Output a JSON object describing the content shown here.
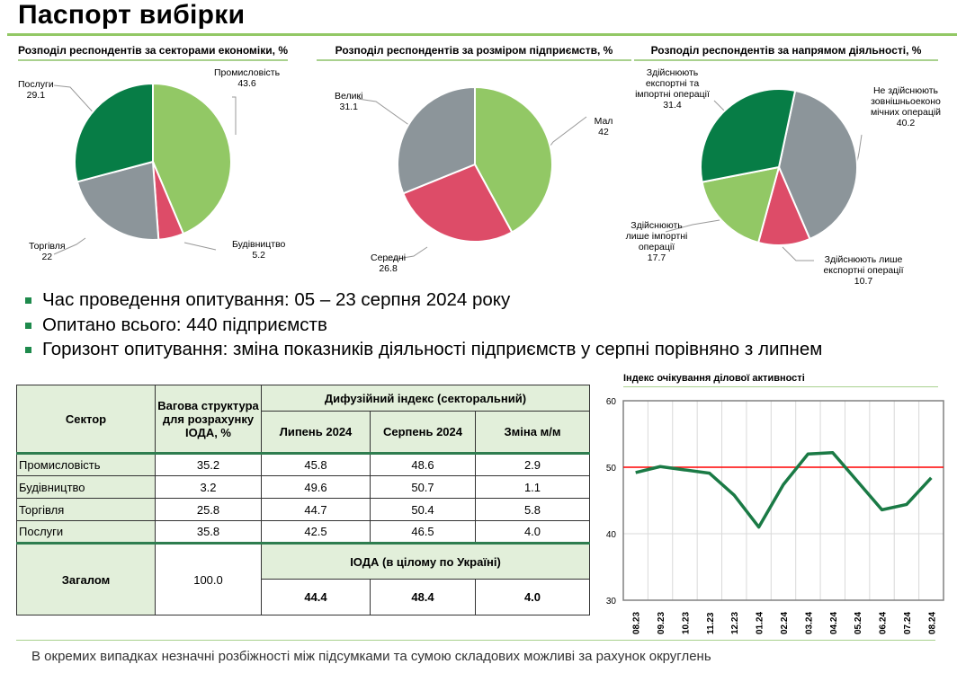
{
  "title": "Паспорт вибірки",
  "colors": {
    "light_green": "#92c865",
    "dark_green": "#077d46",
    "red": "#dd4c68",
    "gray": "#8c959a",
    "accent_line": "#92c865",
    "threshold": "#ff0000",
    "series": "#1a7a45"
  },
  "pies": [
    {
      "title": "Розподіл респондентів за секторами економіки, %",
      "start_deg": 0,
      "slices": [
        {
          "label": "Промисловість",
          "value": 43.6,
          "color": "#92c865"
        },
        {
          "label": "Будівництво",
          "value": 5.2,
          "color": "#dd4c68"
        },
        {
          "label": "Торгівля",
          "value": 22.0,
          "color": "#8c959a"
        },
        {
          "label": "Послуги",
          "value": 29.1,
          "color": "#077d46"
        }
      ]
    },
    {
      "title": "Розподіл респондентів за розміром підприємств, %",
      "start_deg": 0,
      "slices": [
        {
          "label": "Мал",
          "value": 42.0,
          "color": "#92c865"
        },
        {
          "label": "Середні",
          "value": 26.8,
          "color": "#dd4c68"
        },
        {
          "label": "Великі",
          "value": 31.1,
          "color": "#8c959a"
        }
      ]
    },
    {
      "title": "Розподіл респондентів за напрямом діяльності, %",
      "start_deg": 12,
      "slices": [
        {
          "label": "Не здійснюють зовнішньоеконо мічних операцій",
          "value": 40.2,
          "color": "#8c959a"
        },
        {
          "label": "Здійснюють лише експортні операції",
          "value": 10.7,
          "color": "#dd4c68"
        },
        {
          "label": "Здійснюють лише імпортні операції",
          "value": 17.7,
          "color": "#92c865"
        },
        {
          "label": "Здійснюють експортні та імпортні операції",
          "value": 31.4,
          "color": "#077d46"
        }
      ]
    }
  ],
  "bullets": [
    "Час проведення опитування: 05 – 23 серпня 2024 року",
    "Опитано всього: 440 підприємств",
    "Горизонт опитування: зміна показників діяльності підприємств у серпні порівняно з липнем"
  ],
  "table": {
    "h_sector": "Сектор",
    "h_weight": "Вагова структура для розрахунку ІОДА, %",
    "h_diff": "Дифузійний індекс (секторальний)",
    "h_jul": "Липень 2024",
    "h_aug": "Серпень 2024",
    "h_chg": "Зміна м/м",
    "rows": [
      [
        "Промисловість",
        "35.2",
        "45.8",
        "48.6",
        "2.9"
      ],
      [
        "Будівництво",
        "3.2",
        "49.6",
        "50.7",
        "1.1"
      ],
      [
        "Торгівля",
        "25.8",
        "44.7",
        "50.4",
        "5.8"
      ],
      [
        "Послуги",
        "35.8",
        "42.5",
        "46.5",
        "4.0"
      ]
    ],
    "total_label": "Загалом",
    "total_weight": "100.0",
    "ioda_label": "ІОДА (в цілому по Україні)",
    "ioda": [
      "44.4",
      "48.4",
      "4.0"
    ]
  },
  "chart_data": {
    "type": "line",
    "title": "Індекс очікування ділової активності",
    "categories": [
      "08.23",
      "09.23",
      "10.23",
      "11.23",
      "12.23",
      "01.24",
      "02.24",
      "03.24",
      "04.24",
      "05.24",
      "06.24",
      "07.24",
      "08.24"
    ],
    "values": [
      49.2,
      50.1,
      49.6,
      49.1,
      45.8,
      41.0,
      47.4,
      52.0,
      52.2,
      47.9,
      43.6,
      44.4,
      48.4
    ],
    "threshold": 50,
    "ylim": [
      30,
      60
    ],
    "yticks": [
      30,
      40,
      50,
      60
    ],
    "grid": true
  },
  "footnote": "В окремих випадках незначні розбіжності між підсумками та сумою складових можливі за рахунок округлень"
}
